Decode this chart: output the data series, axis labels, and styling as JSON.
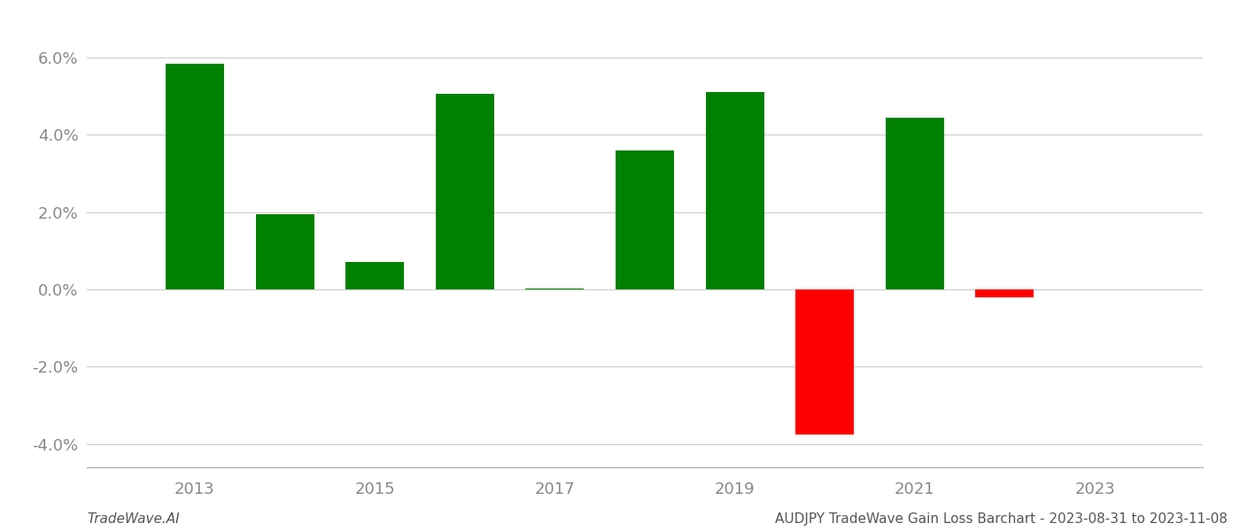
{
  "years": [
    2013,
    2014,
    2015,
    2016,
    2017,
    2018,
    2019,
    2020,
    2021,
    2022
  ],
  "values": [
    0.0585,
    0.0195,
    0.007,
    0.0505,
    0.0002,
    0.036,
    0.051,
    -0.0375,
    0.0445,
    -0.002
  ],
  "colors": [
    "#008000",
    "#008000",
    "#008000",
    "#008000",
    "#008000",
    "#008000",
    "#008000",
    "#ff0000",
    "#008000",
    "#ff0000"
  ],
  "footer_left": "TradeWave.AI",
  "footer_right": "AUDJPY TradeWave Gain Loss Barchart - 2023-08-31 to 2023-11-08",
  "ylim": [
    -0.046,
    0.068
  ],
  "yticks": [
    -0.04,
    -0.02,
    0.0,
    0.02,
    0.04,
    0.06
  ],
  "xticks": [
    2013,
    2015,
    2017,
    2019,
    2021,
    2023
  ],
  "xlim": [
    2011.8,
    2024.2
  ],
  "figsize": [
    14.0,
    6.0
  ],
  "dpi": 100,
  "bar_width": 0.65,
  "grid_color": "#cccccc",
  "background_color": "#ffffff",
  "axis_color": "#aaaaaa",
  "tick_color": "#888888",
  "footer_fontsize": 11,
  "tick_fontsize": 13
}
